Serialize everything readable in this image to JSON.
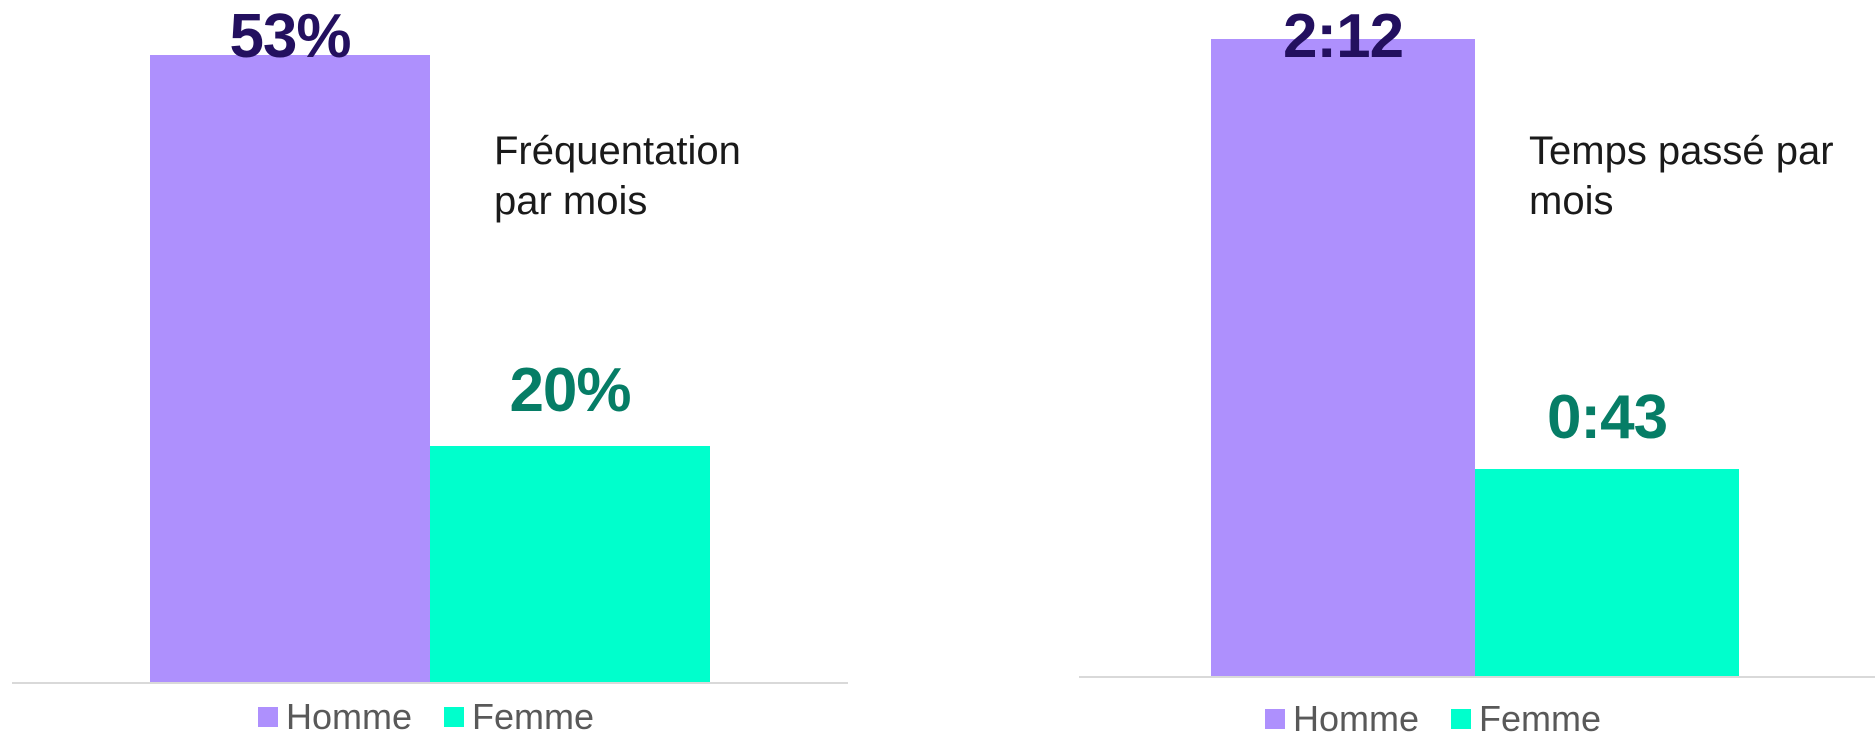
{
  "colors": {
    "homme": "#ae90fd",
    "femme": "#00ffcc",
    "homme_label": "#23105f",
    "femme_label": "#067d66"
  },
  "chart_data": [
    {
      "type": "bar",
      "title_lines": [
        "Fréquentation",
        "par mois"
      ],
      "categories": [
        "Homme",
        "Femme"
      ],
      "values": [
        53,
        20
      ],
      "value_labels": [
        "53%",
        "20%"
      ],
      "ylim": [
        0,
        56
      ],
      "grid": false,
      "legend": {
        "position": "bottom",
        "entries": [
          "Homme",
          "Femme"
        ]
      }
    },
    {
      "type": "bar",
      "title_lines": [
        "Temps passé par",
        "mois"
      ],
      "categories": [
        "Homme",
        "Femme"
      ],
      "values": [
        132,
        43
      ],
      "value_labels": [
        "2:12",
        "0:43"
      ],
      "ylim": [
        0,
        136
      ],
      "grid": false,
      "legend": {
        "position": "bottom",
        "entries": [
          "Homme",
          "Femme"
        ]
      }
    }
  ]
}
